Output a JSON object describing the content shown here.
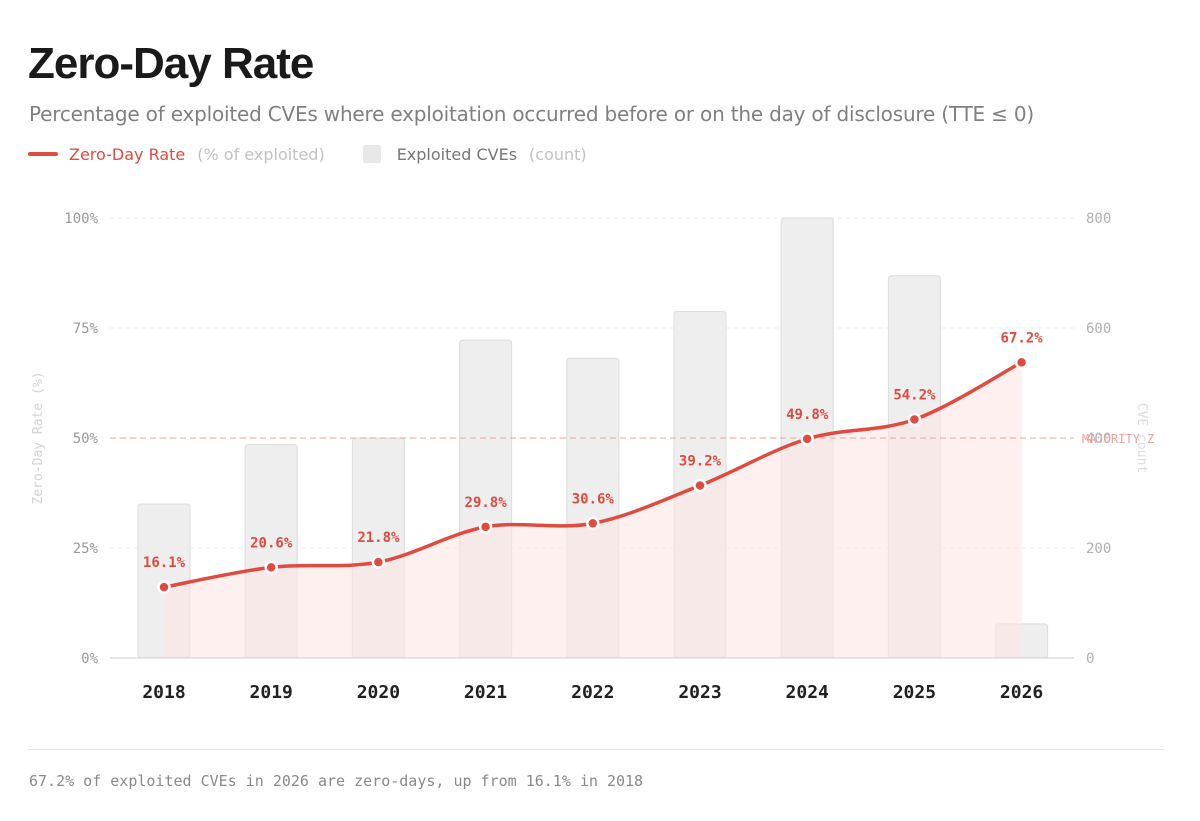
{
  "title": "Zero-Day Rate",
  "subtitle": "Percentage of exploited CVEs where exploitation occurred before or on the day of disclosure (TTE ≤ 0)",
  "legend": {
    "rate_label": "Zero-Day Rate",
    "rate_unit": "(% of exploited)",
    "count_label": "Exploited CVEs",
    "count_unit": "(count)"
  },
  "footer": "67.2% of exploited CVEs in 2026 are zero-days, up from 16.1% in 2018",
  "colors": {
    "line": "#e04b3f",
    "bar_fill": "#eeeeee",
    "bar_stroke": "#dcdcdc",
    "area": "#fbe6e3",
    "grid": "#ececec",
    "threshold": "#eda39c"
  },
  "chart_data": {
    "type": "bar+line",
    "title": "Zero-Day Rate",
    "categories": [
      "2018",
      "2019",
      "2020",
      "2021",
      "2022",
      "2023",
      "2024",
      "2025",
      "2026"
    ],
    "series": [
      {
        "name": "Exploited CVEs",
        "axis": "right",
        "type": "bar",
        "values": [
          280,
          388,
          400,
          578,
          545,
          630,
          800,
          695,
          62
        ]
      },
      {
        "name": "Zero-Day Rate",
        "axis": "left",
        "type": "line",
        "values": [
          16.1,
          20.6,
          21.8,
          29.8,
          30.6,
          39.2,
          49.8,
          54.2,
          67.2
        ],
        "labels": [
          "16.1%",
          "20.6%",
          "21.8%",
          "29.8%",
          "30.6%",
          "39.2%",
          "49.8%",
          "54.2%",
          "67.2%"
        ]
      }
    ],
    "y_left": {
      "label": "Zero-Day Rate (%)",
      "range": [
        0,
        100
      ],
      "ticks": [
        0,
        25,
        50,
        75,
        100
      ],
      "tick_labels": [
        "0%",
        "25%",
        "50%",
        "75%",
        "100%"
      ]
    },
    "y_right": {
      "label": "CVE count",
      "range": [
        0,
        800
      ],
      "ticks": [
        0,
        200,
        400,
        600,
        800
      ],
      "tick_labels": [
        "0",
        "200",
        "400",
        "600",
        "800"
      ]
    },
    "threshold": {
      "value": 50,
      "label": "MAJORITY Z"
    },
    "grid": true
  }
}
